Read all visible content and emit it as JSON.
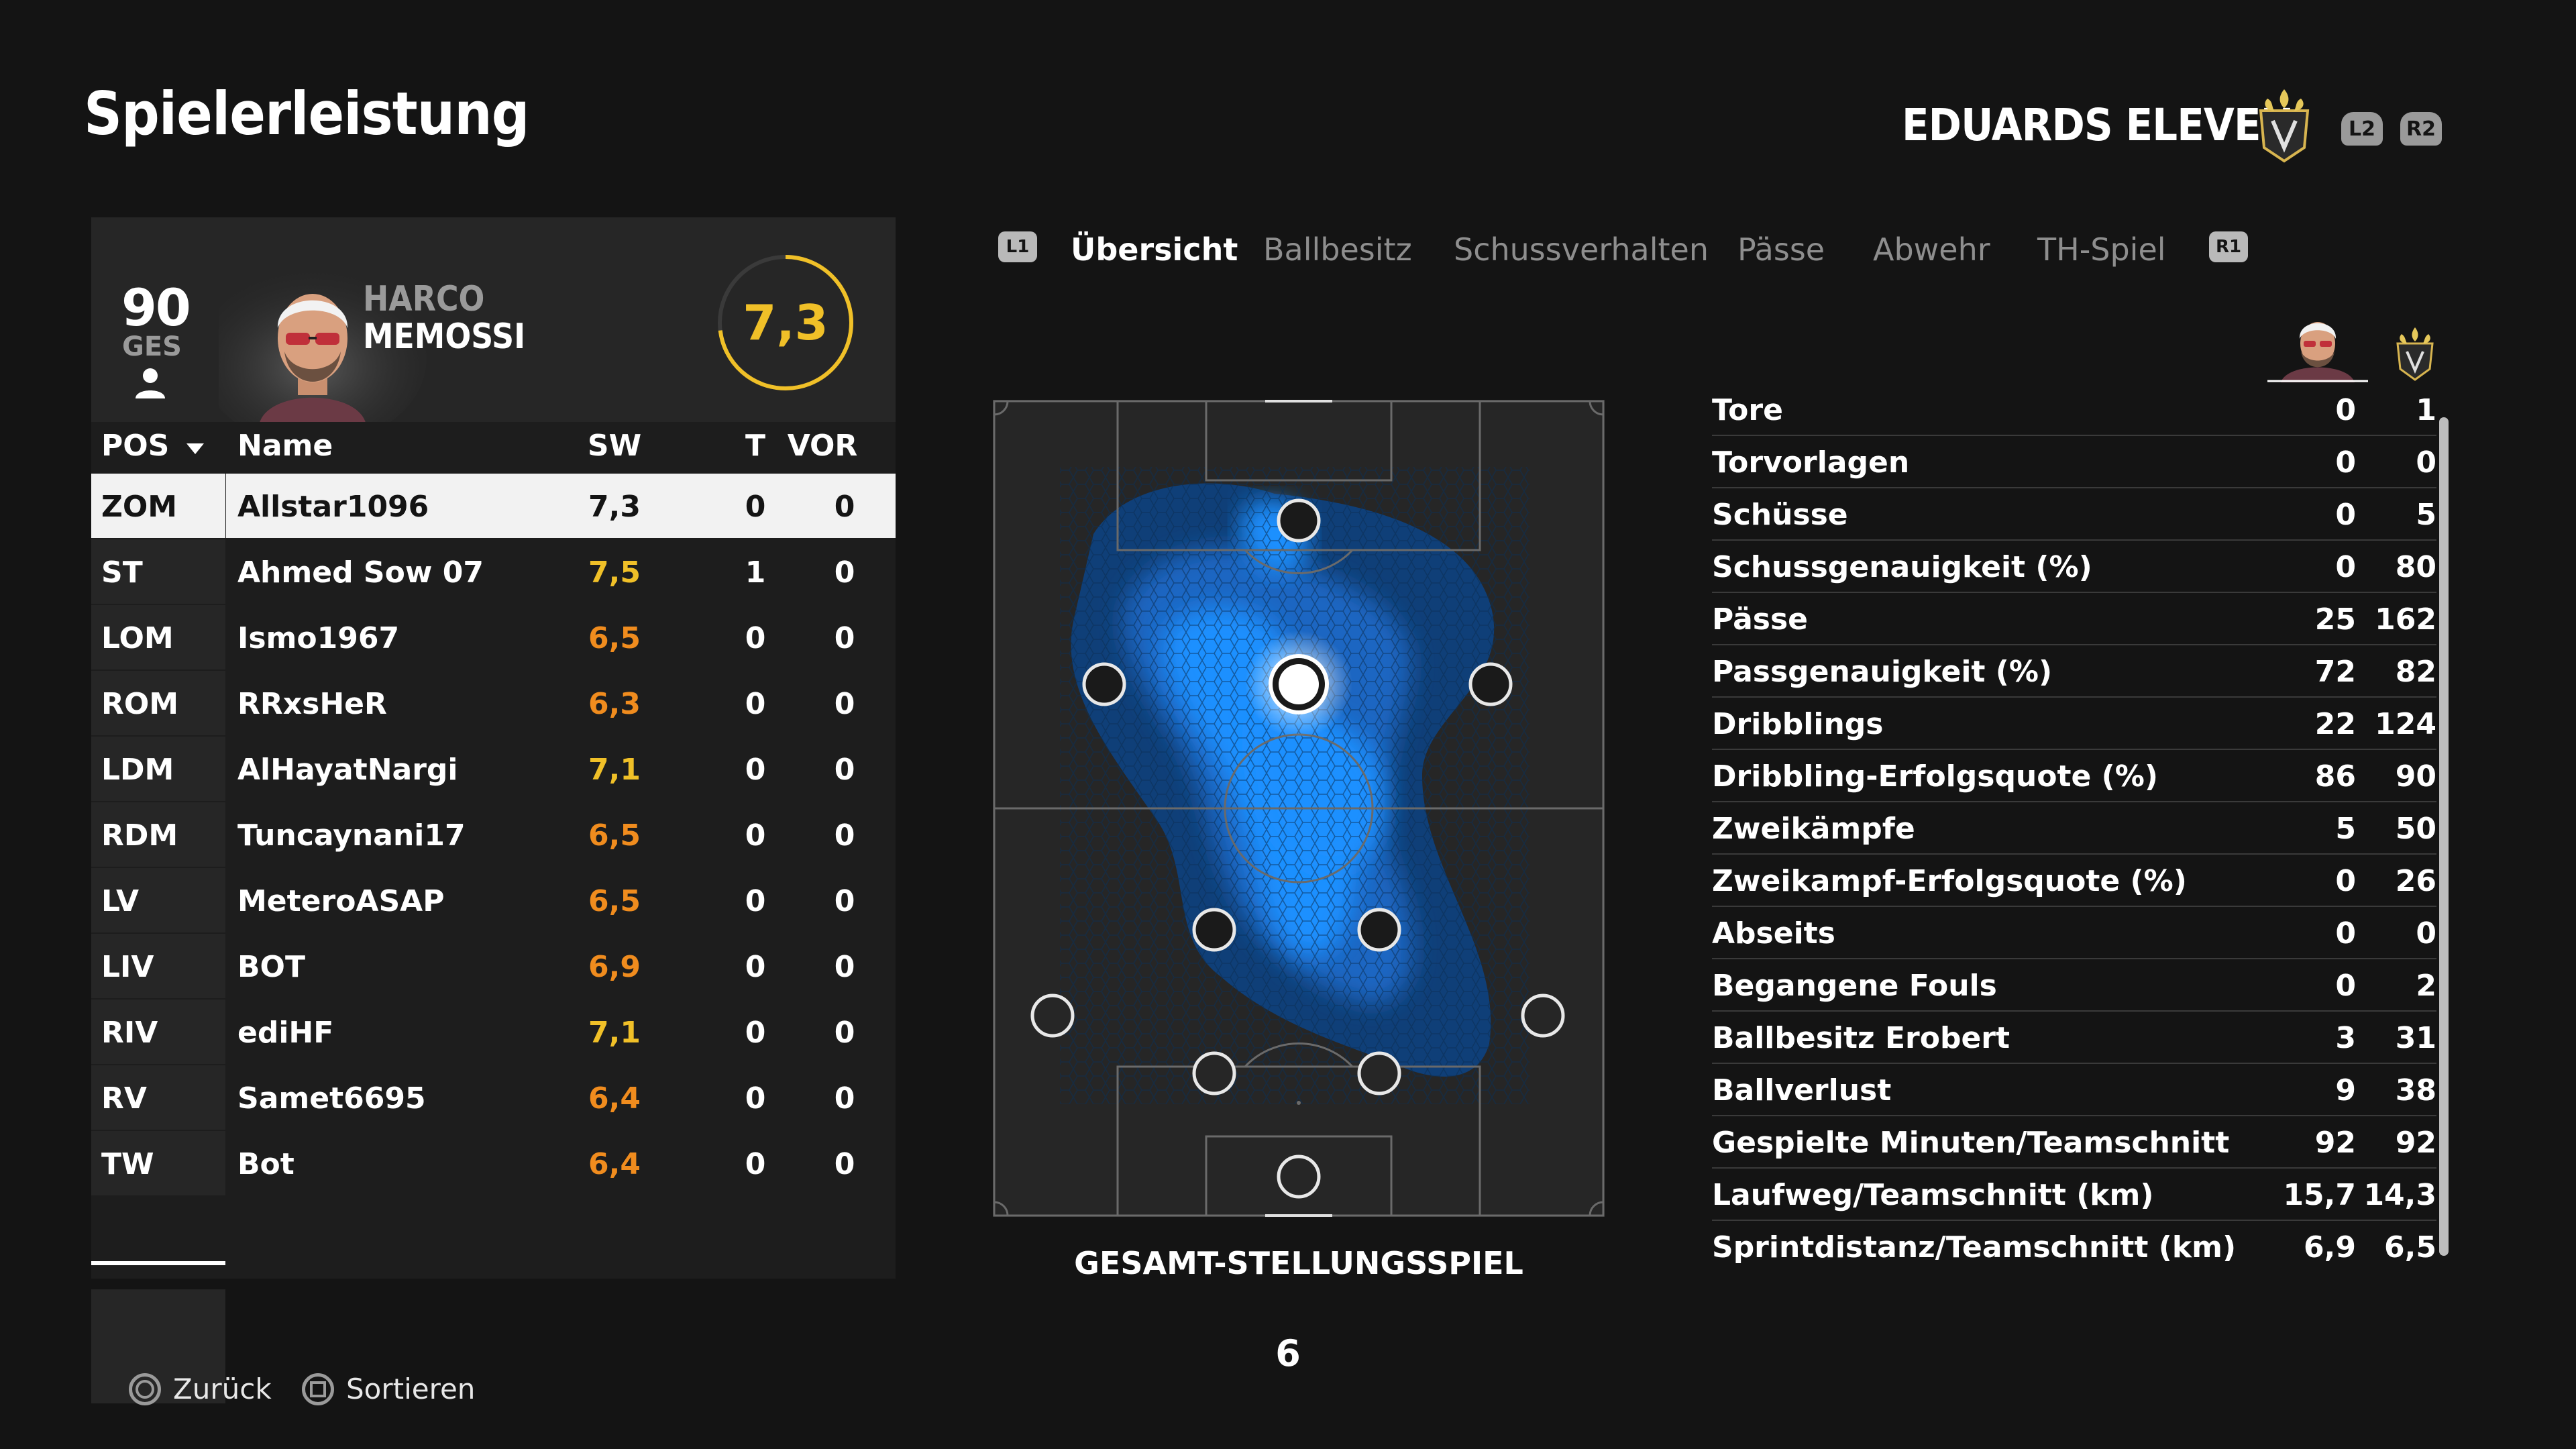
{
  "header": {
    "title": "Spielerleistung",
    "club_name": "EDUARDS ELEVEN",
    "l2_label": "L2",
    "r2_label": "R2"
  },
  "player": {
    "overall": "90",
    "overall_label": "GES",
    "first_name": "HARCO",
    "last_name": "MEMOSSI",
    "match_rating": "7,3"
  },
  "table": {
    "columns": {
      "pos": "POS",
      "name": "Name",
      "sw": "SW",
      "t": "T",
      "vor": "VOR"
    },
    "rows": [
      {
        "pos": "ZOM",
        "name": "Allstar1096",
        "sw": "7,3",
        "t": "0",
        "vor": "0"
      },
      {
        "pos": "ST",
        "name": "Ahmed Sow 07",
        "sw": "7,5",
        "t": "1",
        "vor": "0"
      },
      {
        "pos": "LOM",
        "name": "Ismo1967",
        "sw": "6,5",
        "t": "0",
        "vor": "0"
      },
      {
        "pos": "ROM",
        "name": "RRxsHeR",
        "sw": "6,3",
        "t": "0",
        "vor": "0"
      },
      {
        "pos": "LDM",
        "name": "AlHayatNargi",
        "sw": "7,1",
        "t": "0",
        "vor": "0"
      },
      {
        "pos": "RDM",
        "name": "Tuncaynani17",
        "sw": "6,5",
        "t": "0",
        "vor": "0"
      },
      {
        "pos": "LV",
        "name": "MeteroASAP",
        "sw": "6,5",
        "t": "0",
        "vor": "0"
      },
      {
        "pos": "LIV",
        "name": "BOT",
        "sw": "6,9",
        "t": "0",
        "vor": "0"
      },
      {
        "pos": "RIV",
        "name": "ediHF",
        "sw": "7,1",
        "t": "0",
        "vor": "0"
      },
      {
        "pos": "RV",
        "name": "Samet6695",
        "sw": "6,4",
        "t": "0",
        "vor": "0"
      },
      {
        "pos": "TW",
        "name": "Bot",
        "sw": "6,4",
        "t": "0",
        "vor": "0"
      }
    ]
  },
  "tabs": {
    "l1_label": "L1",
    "r1_label": "R1",
    "items": [
      "Übersicht",
      "Ballbesitz",
      "Schussverhalten",
      "Pässe",
      "Abwehr",
      "TH-Spiel"
    ]
  },
  "pitch": {
    "caption": "GESAMT-STELLUNGSSPIEL",
    "page_number": "6"
  },
  "stats": [
    {
      "label": "Tore",
      "player": "0",
      "team": "1"
    },
    {
      "label": "Torvorlagen",
      "player": "0",
      "team": "0"
    },
    {
      "label": "Schüsse",
      "player": "0",
      "team": "5"
    },
    {
      "label": "Schussgenauigkeit (%)",
      "player": "0",
      "team": "80"
    },
    {
      "label": "Pässe",
      "player": "25",
      "team": "162"
    },
    {
      "label": "Passgenauigkeit (%)",
      "player": "72",
      "team": "82"
    },
    {
      "label": "Dribblings",
      "player": "22",
      "team": "124"
    },
    {
      "label": "Dribbling-Erfolgsquote (%)",
      "player": "86",
      "team": "90"
    },
    {
      "label": "Zweikämpfe",
      "player": "5",
      "team": "50"
    },
    {
      "label": "Zweikampf-Erfolgsquote (%)",
      "player": "0",
      "team": "26"
    },
    {
      "label": "Abseits",
      "player": "0",
      "team": "0"
    },
    {
      "label": "Begangene Fouls",
      "player": "0",
      "team": "2"
    },
    {
      "label": "Ballbesitz Erobert",
      "player": "3",
      "team": "31"
    },
    {
      "label": "Ballverlust",
      "player": "9",
      "team": "38"
    },
    {
      "label": "Gespielte Minuten/Teamschnitt",
      "player": "92",
      "team": "92"
    },
    {
      "label": "Laufweg/Teamschnitt (km)",
      "player": "15,7",
      "team": "14,3"
    },
    {
      "label": "Sprintdistanz/Teamschnitt (km)",
      "player": "6,9",
      "team": "6,5"
    }
  ],
  "footer": {
    "back_label": "Zurück",
    "sort_label": "Sortieren"
  },
  "colors": {
    "accent_yellow": "#f0c028",
    "rating_orange": "#f08c1e",
    "heat_blue": "#1e90ff"
  }
}
